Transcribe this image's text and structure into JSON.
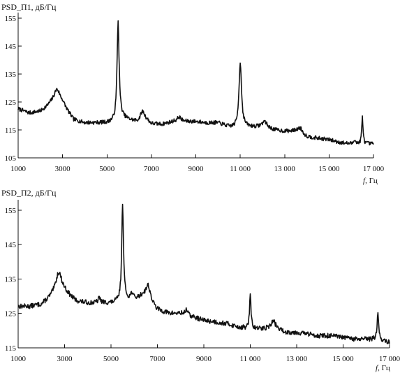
{
  "chart_data": [
    {
      "type": "line",
      "ylabel": "PSD_П1, дБ/Гц",
      "xlabel_italic": "f",
      "xlabel_unit": ", Гц",
      "xlim": [
        1000,
        17000
      ],
      "ylim": [
        105,
        157
      ],
      "xticks": [
        1000,
        3000,
        5000,
        7000,
        9000,
        11000,
        13000,
        15000,
        17000
      ],
      "xtick_labels": [
        "1000",
        "3000",
        "5000",
        "7000",
        "9000",
        "11 000",
        "13 000",
        "15 000",
        "17 000"
      ],
      "yticks": [
        105,
        115,
        125,
        135,
        145,
        155
      ],
      "ytick_labels": [
        "105",
        "115",
        "125",
        "135",
        "145",
        "155"
      ],
      "x_end": 17000,
      "series": [
        {
          "baseline": [
            [
              1000,
              122.5
            ],
            [
              1500,
              121
            ],
            [
              2000,
              121.5
            ],
            [
              2500,
              124
            ],
            [
              3000,
              124
            ],
            [
              3500,
              118.5
            ],
            [
              4000,
              117.5
            ],
            [
              4500,
              117.5
            ],
            [
              5000,
              117.5
            ],
            [
              5400,
              118
            ],
            [
              5600,
              119.5
            ],
            [
              6000,
              118.5
            ],
            [
              6400,
              117.5
            ],
            [
              6800,
              118
            ],
            [
              7000,
              117
            ],
            [
              7500,
              117
            ],
            [
              8000,
              118
            ],
            [
              8500,
              118
            ],
            [
              9000,
              118
            ],
            [
              9500,
              117.5
            ],
            [
              10000,
              117.5
            ],
            [
              10500,
              116
            ],
            [
              10900,
              115.5
            ],
            [
              11200,
              116
            ],
            [
              11600,
              116
            ],
            [
              12000,
              116
            ],
            [
              12500,
              115
            ],
            [
              13000,
              114.5
            ],
            [
              13500,
              114.5
            ],
            [
              14000,
              112.5
            ],
            [
              14500,
              112
            ],
            [
              15000,
              111.5
            ],
            [
              15500,
              110.5
            ],
            [
              16000,
              110
            ],
            [
              16500,
              110
            ],
            [
              17000,
              110
            ]
          ],
          "peaks": [
            [
              2750,
              5.5,
              180
            ],
            [
              5500,
              35,
              55
            ],
            [
              6600,
              3.8,
              130
            ],
            [
              8250,
              1.6,
              100
            ],
            [
              11000,
              23.5,
              70
            ],
            [
              12100,
              2.2,
              130
            ],
            [
              13700,
              2,
              130
            ],
            [
              16150,
              1.8,
              40
            ],
            [
              16500,
              9.5,
              35
            ]
          ]
        }
      ]
    },
    {
      "type": "line",
      "ylabel": "PSD_П2, дБ/Гц",
      "xlabel_italic": "f",
      "xlabel_unit": ", Гц",
      "xlim": [
        1000,
        17000
      ],
      "ylim": [
        115,
        158
      ],
      "xticks": [
        1000,
        3000,
        5000,
        7000,
        9000,
        11000,
        13000,
        15000,
        17000
      ],
      "xtick_labels": [
        "1000",
        "3000",
        "5000",
        "7000",
        "9000",
        "11 000",
        "13 000",
        "15 000",
        "17 000"
      ],
      "yticks": [
        115,
        125,
        135,
        145,
        155
      ],
      "ytick_labels": [
        "115",
        "125",
        "135",
        "145",
        "155"
      ],
      "x_end": 17000,
      "series": [
        {
          "baseline": [
            [
              1000,
              127
            ],
            [
              1500,
              127
            ],
            [
              2000,
              127.5
            ],
            [
              2500,
              130
            ],
            [
              3000,
              131
            ],
            [
              3500,
              128.5
            ],
            [
              4000,
              128
            ],
            [
              4500,
              128
            ],
            [
              5000,
              128
            ],
            [
              5400,
              128.5
            ],
            [
              5600,
              129
            ],
            [
              6000,
              129
            ],
            [
              6400,
              130
            ],
            [
              7000,
              126
            ],
            [
              7500,
              125
            ],
            [
              8000,
              125
            ],
            [
              8500,
              124
            ],
            [
              9000,
              123
            ],
            [
              9500,
              122.5
            ],
            [
              10000,
              122
            ],
            [
              10500,
              121
            ],
            [
              11000,
              120.5
            ],
            [
              11500,
              120.5
            ],
            [
              12000,
              121
            ],
            [
              12500,
              119.5
            ],
            [
              13000,
              119.5
            ],
            [
              13500,
              119
            ],
            [
              14000,
              118.5
            ],
            [
              14500,
              118.5
            ],
            [
              15000,
              118
            ],
            [
              15500,
              117.5
            ],
            [
              16000,
              117.5
            ],
            [
              16500,
              117.5
            ],
            [
              17000,
              116.5
            ]
          ],
          "peaks": [
            [
              2750,
              6.5,
              160
            ],
            [
              4500,
              1.5,
              60
            ],
            [
              5500,
              28.5,
              45
            ],
            [
              5900,
              1.8,
              60
            ],
            [
              6600,
              4.5,
              120
            ],
            [
              8250,
              1.8,
              60
            ],
            [
              11000,
              9.5,
              40
            ],
            [
              12000,
              1.8,
              110
            ],
            [
              16500,
              7.5,
              40
            ]
          ]
        }
      ]
    }
  ]
}
